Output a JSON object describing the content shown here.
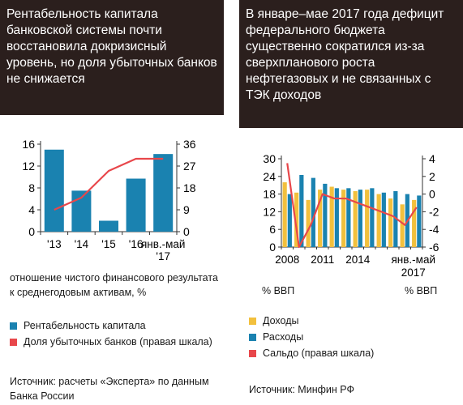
{
  "left": {
    "title": "Рентабельность капитала банковской системы почти восстановила докризисный уровень, но доля убыточных банков не снижается",
    "note": "отношение чистого финансового результата к среднегодовым активам, %",
    "legend": [
      {
        "label": "Рентабельность капитала",
        "color": "#1a82b0"
      },
      {
        "label": "Доля убыточных банков (правая шкала)",
        "color": "#e8474b"
      }
    ],
    "source": "Источник: расчеты «Эксперта» по данным Банка России"
  },
  "right": {
    "title": "В январе–мае 2017 года дефицит федерального бюджета существенно сократился из-за сверхпланового роста нефтегазовых и не связанных с ТЭК доходов",
    "unit_left": "% ВВП",
    "unit_right": "% ВВП",
    "legend": [
      {
        "label": "Доходы",
        "color": "#f2c03d"
      },
      {
        "label": "Расходы",
        "color": "#1a82b0"
      },
      {
        "label": "Сальдо (правая шкала)",
        "color": "#e8474b"
      }
    ],
    "source": "Источник: Минфин РФ"
  },
  "chart_data": [
    {
      "type": "bar",
      "categories": [
        "'13",
        "'14",
        "'15",
        "'16",
        "янв.-май '17"
      ],
      "series": [
        {
          "name": "Рентабельность капитала",
          "values": [
            15,
            7.5,
            2,
            9.7,
            14.2
          ],
          "axis": "left",
          "color": "#1a82b0"
        },
        {
          "name": "Доля убыточных банков (правая шкала)",
          "type": "line",
          "values": [
            9,
            14,
            25,
            30,
            30
          ],
          "axis": "right",
          "color": "#e8474b"
        }
      ],
      "y_left": {
        "ticks": [
          0,
          4,
          8,
          12,
          16
        ],
        "range": [
          0,
          16
        ]
      },
      "y_right": {
        "ticks": [
          0,
          9,
          18,
          27,
          36
        ],
        "range": [
          0,
          36
        ]
      },
      "grid": false
    },
    {
      "type": "bar",
      "x_ticks": [
        "2008",
        "2011",
        "2014",
        "янв.-май 2017"
      ],
      "series": [
        {
          "name": "Доходы",
          "values": [
            22,
            18.5,
            16,
            19.5,
            20.5,
            19.5,
            19,
            19.5,
            18,
            16.5,
            14.5,
            16
          ],
          "axis": "left",
          "color": "#f2c03d"
        },
        {
          "name": "Расходы",
          "values": [
            18,
            24.5,
            23.5,
            21.5,
            20,
            20,
            19.5,
            20,
            18.5,
            19,
            18,
            17.5
          ],
          "axis": "left",
          "color": "#1a82b0"
        },
        {
          "name": "Сальдо (правая шкала)",
          "type": "line",
          "values": [
            3.5,
            -6,
            -3.5,
            0,
            -0.5,
            -0.5,
            -1,
            -1.5,
            -2,
            -2.5,
            -3.5,
            -1.5
          ],
          "axis": "right",
          "color": "#e8474b"
        }
      ],
      "y_left": {
        "ticks": [
          0,
          6,
          12,
          18,
          24,
          30
        ],
        "range": [
          0,
          30
        ]
      },
      "y_right": {
        "ticks": [
          -6,
          -4,
          -2,
          0,
          2,
          4
        ],
        "range": [
          -6,
          4
        ]
      },
      "grid": false
    }
  ]
}
